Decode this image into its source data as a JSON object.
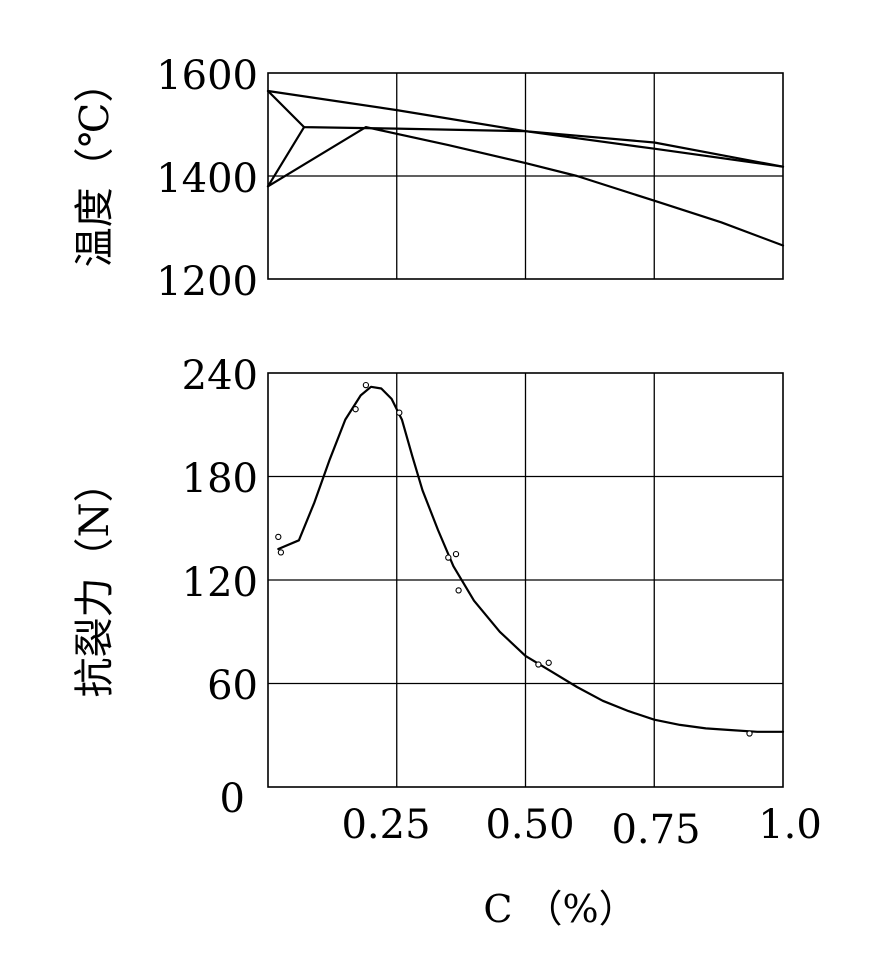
{
  "chart_data": [
    {
      "type": "line",
      "ylabel": "温度（℃）",
      "ylim": [
        1200,
        1600
      ],
      "yticks": [
        "1200",
        "1400",
        "1600"
      ],
      "xlim": [
        0,
        1.0
      ],
      "grid": true,
      "series": [
        {
          "x": [
            0.0,
            0.25,
            0.5,
            0.75,
            1.0
          ],
          "y": [
            1565,
            1528,
            1487,
            1453,
            1418
          ]
        },
        {
          "x": [
            0.0,
            0.07,
            0.25,
            0.5,
            0.75,
            1.0
          ],
          "y": [
            1565,
            1495,
            1492,
            1487,
            1465,
            1418
          ]
        },
        {
          "x": [
            0.0,
            0.07
          ],
          "y": [
            1380,
            1495
          ]
        },
        {
          "x": [
            0.0,
            0.19,
            0.35,
            0.5,
            0.6,
            0.75,
            0.88,
            1.0
          ],
          "y": [
            1380,
            1495,
            1460,
            1425,
            1400,
            1352,
            1310,
            1265
          ]
        }
      ]
    },
    {
      "type": "line",
      "ylabel": "抗裂力（N）",
      "xlabel": "C （%）",
      "ylim": [
        0,
        240
      ],
      "yticks": [
        "0",
        "60",
        "120",
        "180",
        "240"
      ],
      "xlim": [
        0,
        1.0
      ],
      "xticks": [
        {
          "value": 0.25,
          "label": "0.25"
        },
        {
          "value": 0.5,
          "label": "0.50"
        },
        {
          "value": 0.75,
          "label": "0.75"
        },
        {
          "value": 1.0,
          "label": "1.0"
        }
      ],
      "grid": true,
      "series": [
        {
          "x": [
            0.02,
            0.06,
            0.09,
            0.12,
            0.15,
            0.18,
            0.2,
            0.22,
            0.24,
            0.26,
            0.28,
            0.3,
            0.33,
            0.36,
            0.4,
            0.45,
            0.5,
            0.55,
            0.6,
            0.65,
            0.7,
            0.75,
            0.8,
            0.85,
            0.9,
            0.95,
            1.0
          ],
          "y": [
            138,
            143,
            165,
            190,
            213,
            227,
            232,
            231,
            225,
            213,
            192,
            172,
            149,
            128,
            108,
            90,
            76,
            67,
            58,
            50,
            44,
            39,
            36,
            34,
            33,
            32,
            32
          ]
        }
      ],
      "points": {
        "x": [
          0.02,
          0.025,
          0.17,
          0.19,
          0.255,
          0.35,
          0.365,
          0.37,
          0.525,
          0.545,
          0.935
        ],
        "y": [
          145,
          136,
          219,
          233,
          217,
          133,
          135,
          114,
          71,
          72,
          31
        ]
      }
    }
  ]
}
